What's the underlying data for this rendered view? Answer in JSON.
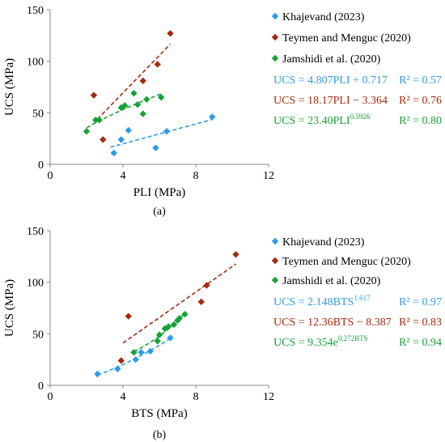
{
  "colors": {
    "khajevand": "#2E9BEA",
    "teymen": "#A52A0E",
    "jamshidi": "#18A236",
    "axis": "#888888"
  },
  "chart_data": [
    {
      "type": "scatter",
      "panel_label": "(a)",
      "xlabel": "PLI (MPa)",
      "ylabel": "UCS (MPa)",
      "xlim": [
        0,
        12
      ],
      "ylim": [
        0,
        150
      ],
      "xticks": [
        "0",
        "4",
        "8",
        "12"
      ],
      "yticks": [
        "0",
        "50",
        "100",
        "150"
      ],
      "grid": false,
      "legend_position": "right",
      "series": [
        {
          "name": "Khajevand (2023)",
          "color": "khajevand",
          "points": [
            [
              3.5,
              11
            ],
            [
              3.9,
              24
            ],
            [
              4.3,
              33
            ],
            [
              5.8,
              16
            ],
            [
              6.4,
              32
            ],
            [
              8.9,
              46
            ]
          ],
          "trend": {
            "kind": "linear",
            "a": 4.807,
            "b": 0.717,
            "xrange": [
              3.3,
              8.9
            ]
          },
          "equation": "UCS = 4.807PLI + 0.717",
          "r2": "R² = 0.57"
        },
        {
          "name": "Teymen and Menguc (2020)",
          "color": "teymen",
          "points": [
            [
              2.4,
              67
            ],
            [
              2.9,
              24
            ],
            [
              5.1,
              81
            ],
            [
              5.9,
              97
            ],
            [
              6.6,
              127
            ]
          ],
          "trend": {
            "kind": "linear",
            "a": 18.17,
            "b": -3.364,
            "xrange": [
              2.6,
              6.6
            ]
          },
          "equation": "UCS = 18.17PLI − 3.364",
          "r2": "R² = 0.76"
        },
        {
          "name": "Jamshidi et al. (2020)",
          "color": "jamshidi",
          "points": [
            [
              2.0,
              32
            ],
            [
              2.5,
              43
            ],
            [
              2.7,
              43
            ],
            [
              3.9,
              55
            ],
            [
              4.1,
              57
            ],
            [
              4.6,
              69
            ],
            [
              4.8,
              58
            ],
            [
              5.1,
              49
            ],
            [
              5.3,
              63
            ],
            [
              6.1,
              65
            ]
          ],
          "trend": {
            "kind": "power",
            "a": 23.4,
            "b": 0.5926,
            "xrange": [
              2.0,
              6.1
            ]
          },
          "equation": "UCS = 23.40PLI",
          "equation_sup": "0.5926",
          "r2": "R² = 0.80"
        }
      ]
    },
    {
      "type": "scatter",
      "panel_label": "(b)",
      "xlabel": "BTS (MPa)",
      "ylabel": "UCS (MPa)",
      "xlim": [
        0,
        12
      ],
      "ylim": [
        0,
        150
      ],
      "xticks": [
        "0",
        "4",
        "8",
        "12"
      ],
      "yticks": [
        "0",
        "50",
        "100",
        "150"
      ],
      "grid": false,
      "legend_position": "right",
      "series": [
        {
          "name": "Khajevand (2023)",
          "color": "khajevand",
          "points": [
            [
              2.6,
              11
            ],
            [
              3.7,
              16
            ],
            [
              4.7,
              25
            ],
            [
              5.0,
              32
            ],
            [
              5.5,
              33
            ],
            [
              6.6,
              46
            ]
          ],
          "trend": {
            "kind": "power",
            "a": 2.148,
            "b": 1.617,
            "xrange": [
              2.6,
              6.6
            ]
          },
          "equation": "UCS = 2.148BTS",
          "equation_sup": "1.617",
          "r2": "R² = 0.97"
        },
        {
          "name": "Teymen and Menguc (2020)",
          "color": "teymen",
          "points": [
            [
              3.9,
              24
            ],
            [
              4.3,
              67
            ],
            [
              8.3,
              81
            ],
            [
              8.6,
              97
            ],
            [
              10.2,
              127
            ]
          ],
          "trend": {
            "kind": "linear",
            "a": 12.36,
            "b": -8.387,
            "xrange": [
              4.0,
              10.2
            ]
          },
          "equation": "UCS = 12.36BTS − 8.387",
          "r2": "R² = 0.83"
        },
        {
          "name": "Jamshidi et al. (2020)",
          "color": "jamshidi",
          "points": [
            [
              4.6,
              32
            ],
            [
              5.9,
              43
            ],
            [
              6.0,
              49
            ],
            [
              6.3,
              55
            ],
            [
              6.5,
              57
            ],
            [
              6.8,
              59
            ],
            [
              7.0,
              63
            ],
            [
              7.1,
              65
            ],
            [
              7.4,
              69
            ]
          ],
          "trend": {
            "kind": "exp",
            "a": 9.354,
            "b": 0.272,
            "xrange": [
              4.6,
              7.4
            ]
          },
          "equation": "UCS = 9.354e",
          "equation_sup": "0.272BTS",
          "r2": "R² = 0.94"
        }
      ]
    }
  ]
}
